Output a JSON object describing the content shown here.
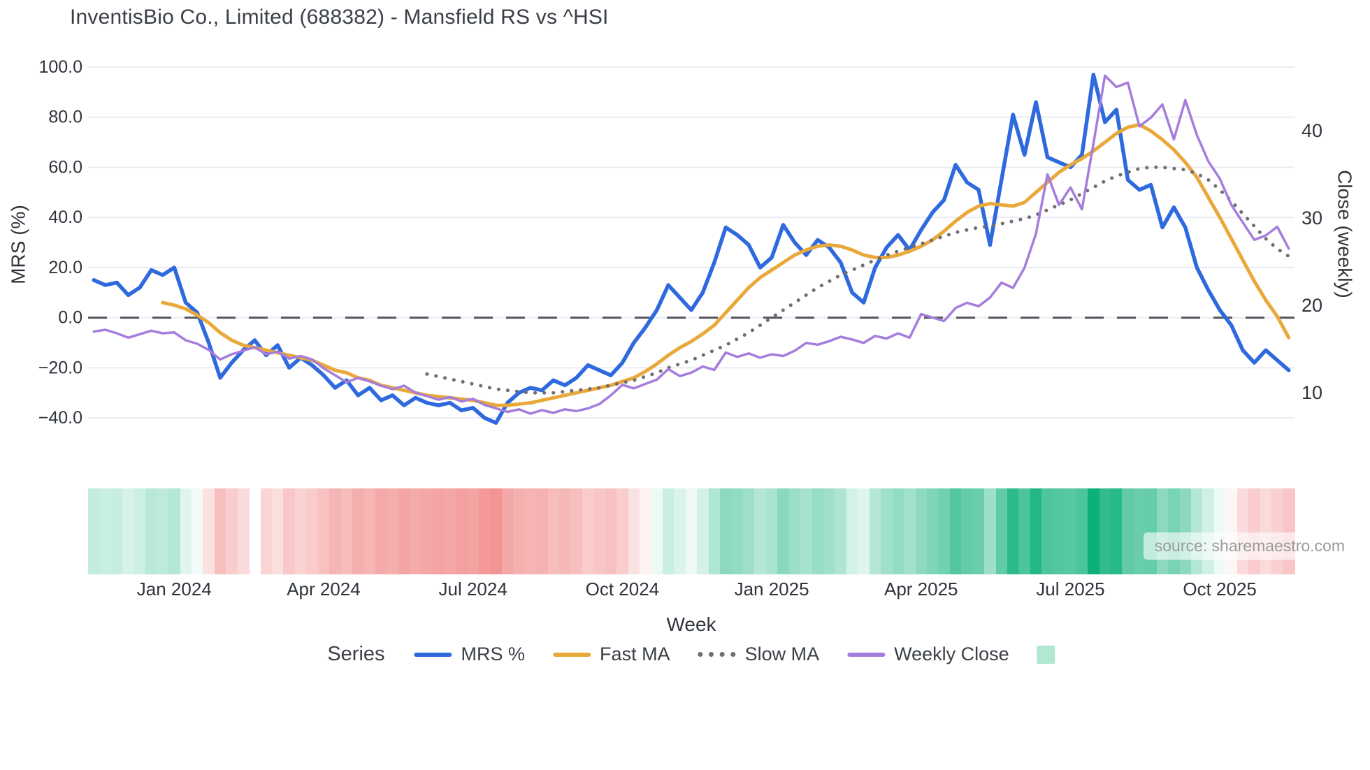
{
  "title": "InventisBio Co., Limited (688382) - Mansfield RS vs ^HSI",
  "watermark": "source: sharemaestro.com",
  "axes": {
    "left": {
      "label": "MRS (%)",
      "tick_labels": [
        "100.0",
        "80.0",
        "60.0",
        "40.0",
        "20.0",
        "0.0",
        "−20.0",
        "−40.0"
      ],
      "tick_values": [
        100,
        80,
        60,
        40,
        20,
        0,
        -20,
        -40
      ]
    },
    "right": {
      "label": "Close (weekly)",
      "tick_labels": [
        "40",
        "30",
        "20",
        "10"
      ],
      "tick_values": [
        40,
        30,
        20,
        10
      ]
    },
    "x": {
      "label": "Week",
      "tick_labels": [
        "Jan 2024",
        "Apr 2024",
        "Jul 2024",
        "Oct 2024",
        "Jan 2025",
        "Apr 2025",
        "Jul 2025",
        "Oct 2025"
      ],
      "tick_weeks": [
        7,
        20,
        33,
        46,
        59,
        72,
        85,
        98
      ]
    }
  },
  "legend": {
    "title": "Series",
    "items": [
      {
        "label": "MRS %",
        "color": "#2f69de",
        "style": "solid"
      },
      {
        "label": "Fast MA",
        "color": "#e9a83a",
        "style": "solid"
      },
      {
        "label": "Slow MA",
        "color": "#6e6e73",
        "style": "dotted"
      },
      {
        "label": "Weekly Close",
        "color": "#a57ddc",
        "style": "solid"
      },
      {
        "label": "",
        "color": "#b2e8d2",
        "style": "square"
      }
    ]
  },
  "colors": {
    "grid": "#e9ebf4",
    "zero_line": "#54555e",
    "heat_green_max": "#0db07a",
    "heat_red_max": "#f29494",
    "text": "#2f343c"
  },
  "chart_data": {
    "type": "line",
    "n_weeks": 105,
    "x_unit": "week",
    "x_range": [
      "Nov 2023",
      "Nov 2025"
    ],
    "left_axis_range": [
      -47,
      112
    ],
    "right_axis_range": [
      5.4,
      48
    ],
    "grid": true,
    "zero_line": {
      "axis": "left",
      "value": 0,
      "style": "dashed"
    },
    "legend_position": "bottom",
    "series": [
      {
        "name": "MRS %",
        "axis": "left",
        "color": "#2f69de",
        "style": "solid",
        "width": 5.5,
        "values": [
          15,
          13,
          14,
          9,
          12,
          19,
          17,
          20,
          6,
          2,
          -10,
          -24,
          -18,
          -13,
          -9,
          -15,
          -11,
          -20,
          -16,
          -19,
          -23,
          -28,
          -25,
          -31,
          -28,
          -33,
          -31,
          -35,
          -32,
          -34,
          -35,
          -34,
          -37,
          -36,
          -40,
          -42,
          -34,
          -30,
          -28,
          -29,
          -25,
          -27,
          -24,
          -19,
          -21,
          -23,
          -18,
          -10,
          -4,
          3,
          13,
          8,
          3,
          10,
          22,
          36,
          33,
          29,
          20,
          24,
          37,
          30,
          25,
          31,
          28,
          22,
          10,
          6,
          20,
          28,
          33,
          27,
          35,
          42,
          47,
          61,
          54,
          51,
          29,
          55,
          81,
          65,
          86,
          64,
          62,
          60,
          65,
          97,
          78,
          83,
          55,
          51,
          53,
          36,
          44,
          36,
          20,
          11,
          3,
          -3,
          -13,
          -18,
          -13,
          -17,
          -21
        ]
      },
      {
        "name": "Fast MA",
        "axis": "left",
        "color": "#e9a83a",
        "style": "solid",
        "width": 5,
        "values": [
          null,
          null,
          null,
          null,
          null,
          null,
          6,
          5,
          3.5,
          1,
          -2,
          -6,
          -9,
          -11,
          -12,
          -13,
          -14,
          -15,
          -16,
          -17,
          -19,
          -21,
          -22,
          -24,
          -25,
          -27,
          -28,
          -29,
          -30,
          -31,
          -31.5,
          -32,
          -32.5,
          -33,
          -34,
          -35,
          -35,
          -34.5,
          -34,
          -33,
          -32,
          -31,
          -30,
          -29,
          -28,
          -27,
          -25.5,
          -24,
          -21.5,
          -18.5,
          -15,
          -12,
          -9.5,
          -6.5,
          -3,
          2,
          7,
          12,
          16,
          19,
          22,
          25,
          27,
          28.5,
          29,
          28.5,
          27,
          25,
          24,
          24,
          25,
          26.5,
          28.5,
          31,
          34.5,
          38.5,
          42,
          44.5,
          45.5,
          45,
          44.5,
          46,
          50,
          54,
          58,
          61,
          63.5,
          66.5,
          70,
          73.5,
          76,
          77,
          74.5,
          71,
          67,
          62,
          56,
          48,
          40,
          31.5,
          23,
          14.5,
          7,
          0.5,
          -8
        ]
      },
      {
        "name": "Slow MA",
        "axis": "left",
        "color": "#6e6e73",
        "style": "dotted",
        "width": 4.5,
        "values": [
          null,
          null,
          null,
          null,
          null,
          null,
          null,
          null,
          null,
          null,
          null,
          null,
          null,
          null,
          null,
          null,
          null,
          null,
          null,
          null,
          null,
          null,
          null,
          null,
          null,
          null,
          null,
          null,
          null,
          -22.5,
          -23.5,
          -24.5,
          -25.5,
          -26.5,
          -27.5,
          -28.5,
          -29,
          -29.5,
          -30,
          -30,
          -30,
          -29.5,
          -29,
          -28.5,
          -28,
          -27,
          -26,
          -25,
          -23.5,
          -22,
          -20,
          -18.5,
          -17,
          -15,
          -13,
          -11,
          -8.5,
          -6,
          -3,
          0,
          3,
          6,
          9,
          12,
          14.5,
          17,
          19,
          21,
          23,
          25,
          26.5,
          28,
          29.5,
          31,
          32.5,
          34,
          35,
          36,
          36.5,
          37.5,
          38.5,
          39.5,
          41,
          43,
          45,
          47,
          49.5,
          52,
          54.5,
          56.5,
          58,
          59.5,
          60,
          60,
          59.5,
          59,
          57.5,
          55,
          51,
          46.5,
          41.5,
          36.5,
          31.5,
          27.5,
          24.5
        ]
      },
      {
        "name": "Weekly Close",
        "axis": "right",
        "color": "#a57ddc",
        "style": "solid",
        "width": 3.5,
        "values": [
          17,
          17.2,
          16.8,
          16.3,
          16.7,
          17.1,
          16.8,
          16.9,
          16,
          15.6,
          14.9,
          13.8,
          14.4,
          14.8,
          15.2,
          14.4,
          14.7,
          13.9,
          14.2,
          13.8,
          12.8,
          12,
          11.2,
          11.7,
          11.3,
          10.8,
          10.4,
          10.8,
          10,
          9.6,
          9.2,
          9.5,
          9,
          9.3,
          8.6,
          8.2,
          7.8,
          8.1,
          7.6,
          8,
          7.7,
          8.1,
          7.9,
          8.2,
          8.7,
          9.7,
          10.9,
          10.5,
          11,
          11.5,
          12.7,
          11.9,
          12.3,
          13,
          12.6,
          14.6,
          14.1,
          14.5,
          14,
          14.4,
          14.2,
          14.8,
          15.7,
          15.5,
          15.9,
          16.4,
          16.1,
          15.7,
          16.5,
          16.2,
          16.8,
          16.3,
          19,
          18.6,
          18.2,
          19.7,
          20.3,
          19.9,
          20.9,
          22.6,
          22,
          24.3,
          28.2,
          35,
          31.5,
          33.5,
          31,
          38.5,
          46.3,
          45,
          45.5,
          40.5,
          41.5,
          43,
          39,
          43.5,
          39.5,
          36.5,
          34.5,
          31.5,
          29.5,
          27.5,
          28,
          29,
          26.5
        ]
      }
    ],
    "heatmap": {
      "description": "weekly band strip colored by MRS % value (green positive, red negative)",
      "source_series": "MRS %",
      "gap_weeks": [
        14
      ],
      "positive_max_color": "#0db07a",
      "negative_max_color": "#f29494"
    }
  }
}
